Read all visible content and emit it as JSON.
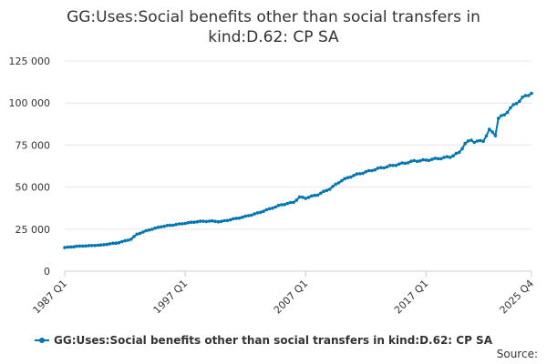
{
  "chart_data": {
    "type": "line",
    "title_line1": "GG:Uses:Social benefits other than social transfers in",
    "title_line2": "kind:D.62: CP SA",
    "xlabel": "",
    "ylabel": "",
    "ylim": [
      0,
      125000
    ],
    "yticks": [
      0,
      25000,
      50000,
      75000,
      100000,
      125000
    ],
    "ytick_labels": [
      "0",
      "25 000",
      "50 000",
      "75 000",
      "100 000",
      "125 000"
    ],
    "xtick_labels": [
      "1987 Q1",
      "1997 Q1",
      "2007 Q1",
      "2017 Q1",
      "2025 Q4"
    ],
    "xtick_years": [
      1987,
      1997,
      2007,
      2017,
      2025.75
    ],
    "x_start": 1987,
    "x_end": 2025.75,
    "grid": true,
    "legend_position": "bottom-left",
    "series": [
      {
        "name": "GG:Uses:Social benefits other than social transfers in kind:D.62: CP SA",
        "color": "#0075b0",
        "anchors": [
          [
            1987.0,
            14000
          ],
          [
            1988.0,
            14800
          ],
          [
            1990.0,
            15500
          ],
          [
            1991.5,
            17000
          ],
          [
            1992.5,
            19000
          ],
          [
            1993.0,
            22000
          ],
          [
            1994.0,
            24500
          ],
          [
            1995.0,
            26500
          ],
          [
            1996.0,
            27500
          ],
          [
            1997.0,
            28500
          ],
          [
            1998.0,
            29500
          ],
          [
            1999.0,
            29800
          ],
          [
            2000.0,
            29500
          ],
          [
            2001.0,
            31000
          ],
          [
            2002.0,
            32500
          ],
          [
            2003.0,
            34500
          ],
          [
            2004.0,
            37000
          ],
          [
            2005.0,
            39500
          ],
          [
            2006.0,
            41000
          ],
          [
            2006.5,
            44000
          ],
          [
            2007.0,
            43500
          ],
          [
            2008.0,
            45500
          ],
          [
            2009.0,
            49000
          ],
          [
            2010.0,
            54000
          ],
          [
            2011.0,
            57000
          ],
          [
            2012.0,
            59000
          ],
          [
            2013.0,
            61000
          ],
          [
            2014.0,
            62500
          ],
          [
            2015.0,
            64000
          ],
          [
            2016.0,
            65500
          ],
          [
            2017.0,
            66000
          ],
          [
            2018.0,
            67000
          ],
          [
            2019.0,
            68000
          ],
          [
            2019.75,
            70500
          ],
          [
            2020.25,
            76000
          ],
          [
            2020.75,
            78000
          ],
          [
            2021.0,
            77000
          ],
          [
            2021.75,
            77500
          ],
          [
            2022.25,
            84000
          ],
          [
            2022.75,
            81000
          ],
          [
            2023.0,
            91000
          ],
          [
            2023.5,
            93000
          ],
          [
            2024.0,
            97000
          ],
          [
            2024.5,
            100000
          ],
          [
            2025.0,
            103000
          ],
          [
            2025.75,
            106000
          ]
        ]
      }
    ]
  },
  "legend": {
    "label": "GG:Uses:Social benefits other than social transfers in kind:D.62: CP SA"
  },
  "source": {
    "label": "Source:"
  }
}
